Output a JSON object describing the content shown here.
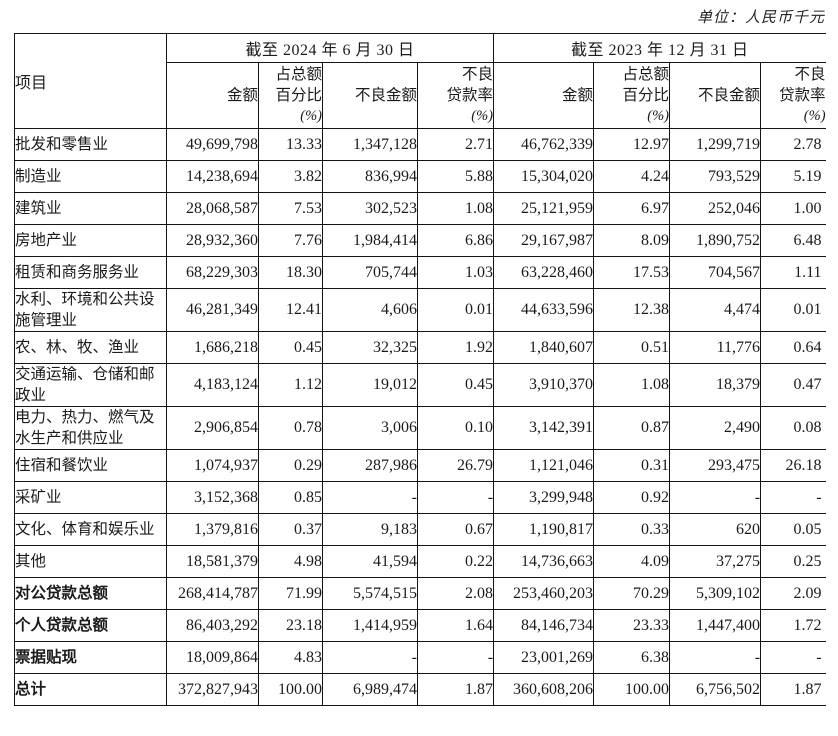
{
  "unit_label": "单位：人民币千元",
  "table": {
    "item_header": "项目",
    "periods": {
      "p2024": "截至 2024 年 6 月 30 日",
      "p2023": "截至 2023 年 12 月 31 日"
    },
    "sub_headers": {
      "amount": "金额",
      "share_lines": "占总额\n百分比",
      "share_unit": "(%)",
      "npl_amount": "不良金额",
      "npl_ratio_lines": "不良\n贷款率",
      "npl_ratio_unit": "(%)"
    },
    "rows": [
      {
        "label": "批发和零售业",
        "total": false,
        "values": [
          "49,699,798",
          "13.33",
          "1,347,128",
          "2.71",
          "46,762,339",
          "12.97",
          "1,299,719",
          "2.78"
        ]
      },
      {
        "label": "制造业",
        "total": false,
        "values": [
          "14,238,694",
          "3.82",
          "836,994",
          "5.88",
          "15,304,020",
          "4.24",
          "793,529",
          "5.19"
        ]
      },
      {
        "label": "建筑业",
        "total": false,
        "values": [
          "28,068,587",
          "7.53",
          "302,523",
          "1.08",
          "25,121,959",
          "6.97",
          "252,046",
          "1.00"
        ]
      },
      {
        "label": "房地产业",
        "total": false,
        "values": [
          "28,932,360",
          "7.76",
          "1,984,414",
          "6.86",
          "29,167,987",
          "8.09",
          "1,890,752",
          "6.48"
        ]
      },
      {
        "label": "租赁和商务服务业",
        "total": false,
        "values": [
          "68,229,303",
          "18.30",
          "705,744",
          "1.03",
          "63,228,460",
          "17.53",
          "704,567",
          "1.11"
        ]
      },
      {
        "label": "水利、环境和公共设施管理业",
        "total": false,
        "values": [
          "46,281,349",
          "12.41",
          "4,606",
          "0.01",
          "44,633,596",
          "12.38",
          "4,474",
          "0.01"
        ]
      },
      {
        "label": "农、林、牧、渔业",
        "total": false,
        "values": [
          "1,686,218",
          "0.45",
          "32,325",
          "1.92",
          "1,840,607",
          "0.51",
          "11,776",
          "0.64"
        ]
      },
      {
        "label": "交通运输、仓储和邮政业",
        "total": false,
        "values": [
          "4,183,124",
          "1.12",
          "19,012",
          "0.45",
          "3,910,370",
          "1.08",
          "18,379",
          "0.47"
        ]
      },
      {
        "label": "电力、热力、燃气及水生产和供应业",
        "total": false,
        "values": [
          "2,906,854",
          "0.78",
          "3,006",
          "0.10",
          "3,142,391",
          "0.87",
          "2,490",
          "0.08"
        ]
      },
      {
        "label": "住宿和餐饮业",
        "total": false,
        "values": [
          "1,074,937",
          "0.29",
          "287,986",
          "26.79",
          "1,121,046",
          "0.31",
          "293,475",
          "26.18"
        ]
      },
      {
        "label": "采矿业",
        "total": false,
        "values": [
          "3,152,368",
          "0.85",
          "-",
          "-",
          "3,299,948",
          "0.92",
          "-",
          "-"
        ]
      },
      {
        "label": "文化、体育和娱乐业",
        "total": false,
        "values": [
          "1,379,816",
          "0.37",
          "9,183",
          "0.67",
          "1,190,817",
          "0.33",
          "620",
          "0.05"
        ]
      },
      {
        "label": "其他",
        "total": false,
        "values": [
          "18,581,379",
          "4.98",
          "41,594",
          "0.22",
          "14,736,663",
          "4.09",
          "37,275",
          "0.25"
        ]
      },
      {
        "label": "对公贷款总额",
        "total": true,
        "values": [
          "268,414,787",
          "71.99",
          "5,574,515",
          "2.08",
          "253,460,203",
          "70.29",
          "5,309,102",
          "2.09"
        ]
      },
      {
        "label": "个人贷款总额",
        "total": true,
        "values": [
          "86,403,292",
          "23.18",
          "1,414,959",
          "1.64",
          "84,146,734",
          "23.33",
          "1,447,400",
          "1.72"
        ]
      },
      {
        "label": "票据贴现",
        "total": true,
        "values": [
          "18,009,864",
          "4.83",
          "-",
          "-",
          "23,001,269",
          "6.38",
          "-",
          "-"
        ]
      },
      {
        "label": "总计",
        "total": true,
        "values": [
          "372,827,943",
          "100.00",
          "6,989,474",
          "1.87",
          "360,608,206",
          "100.00",
          "6,756,502",
          "1.87"
        ]
      }
    ]
  }
}
